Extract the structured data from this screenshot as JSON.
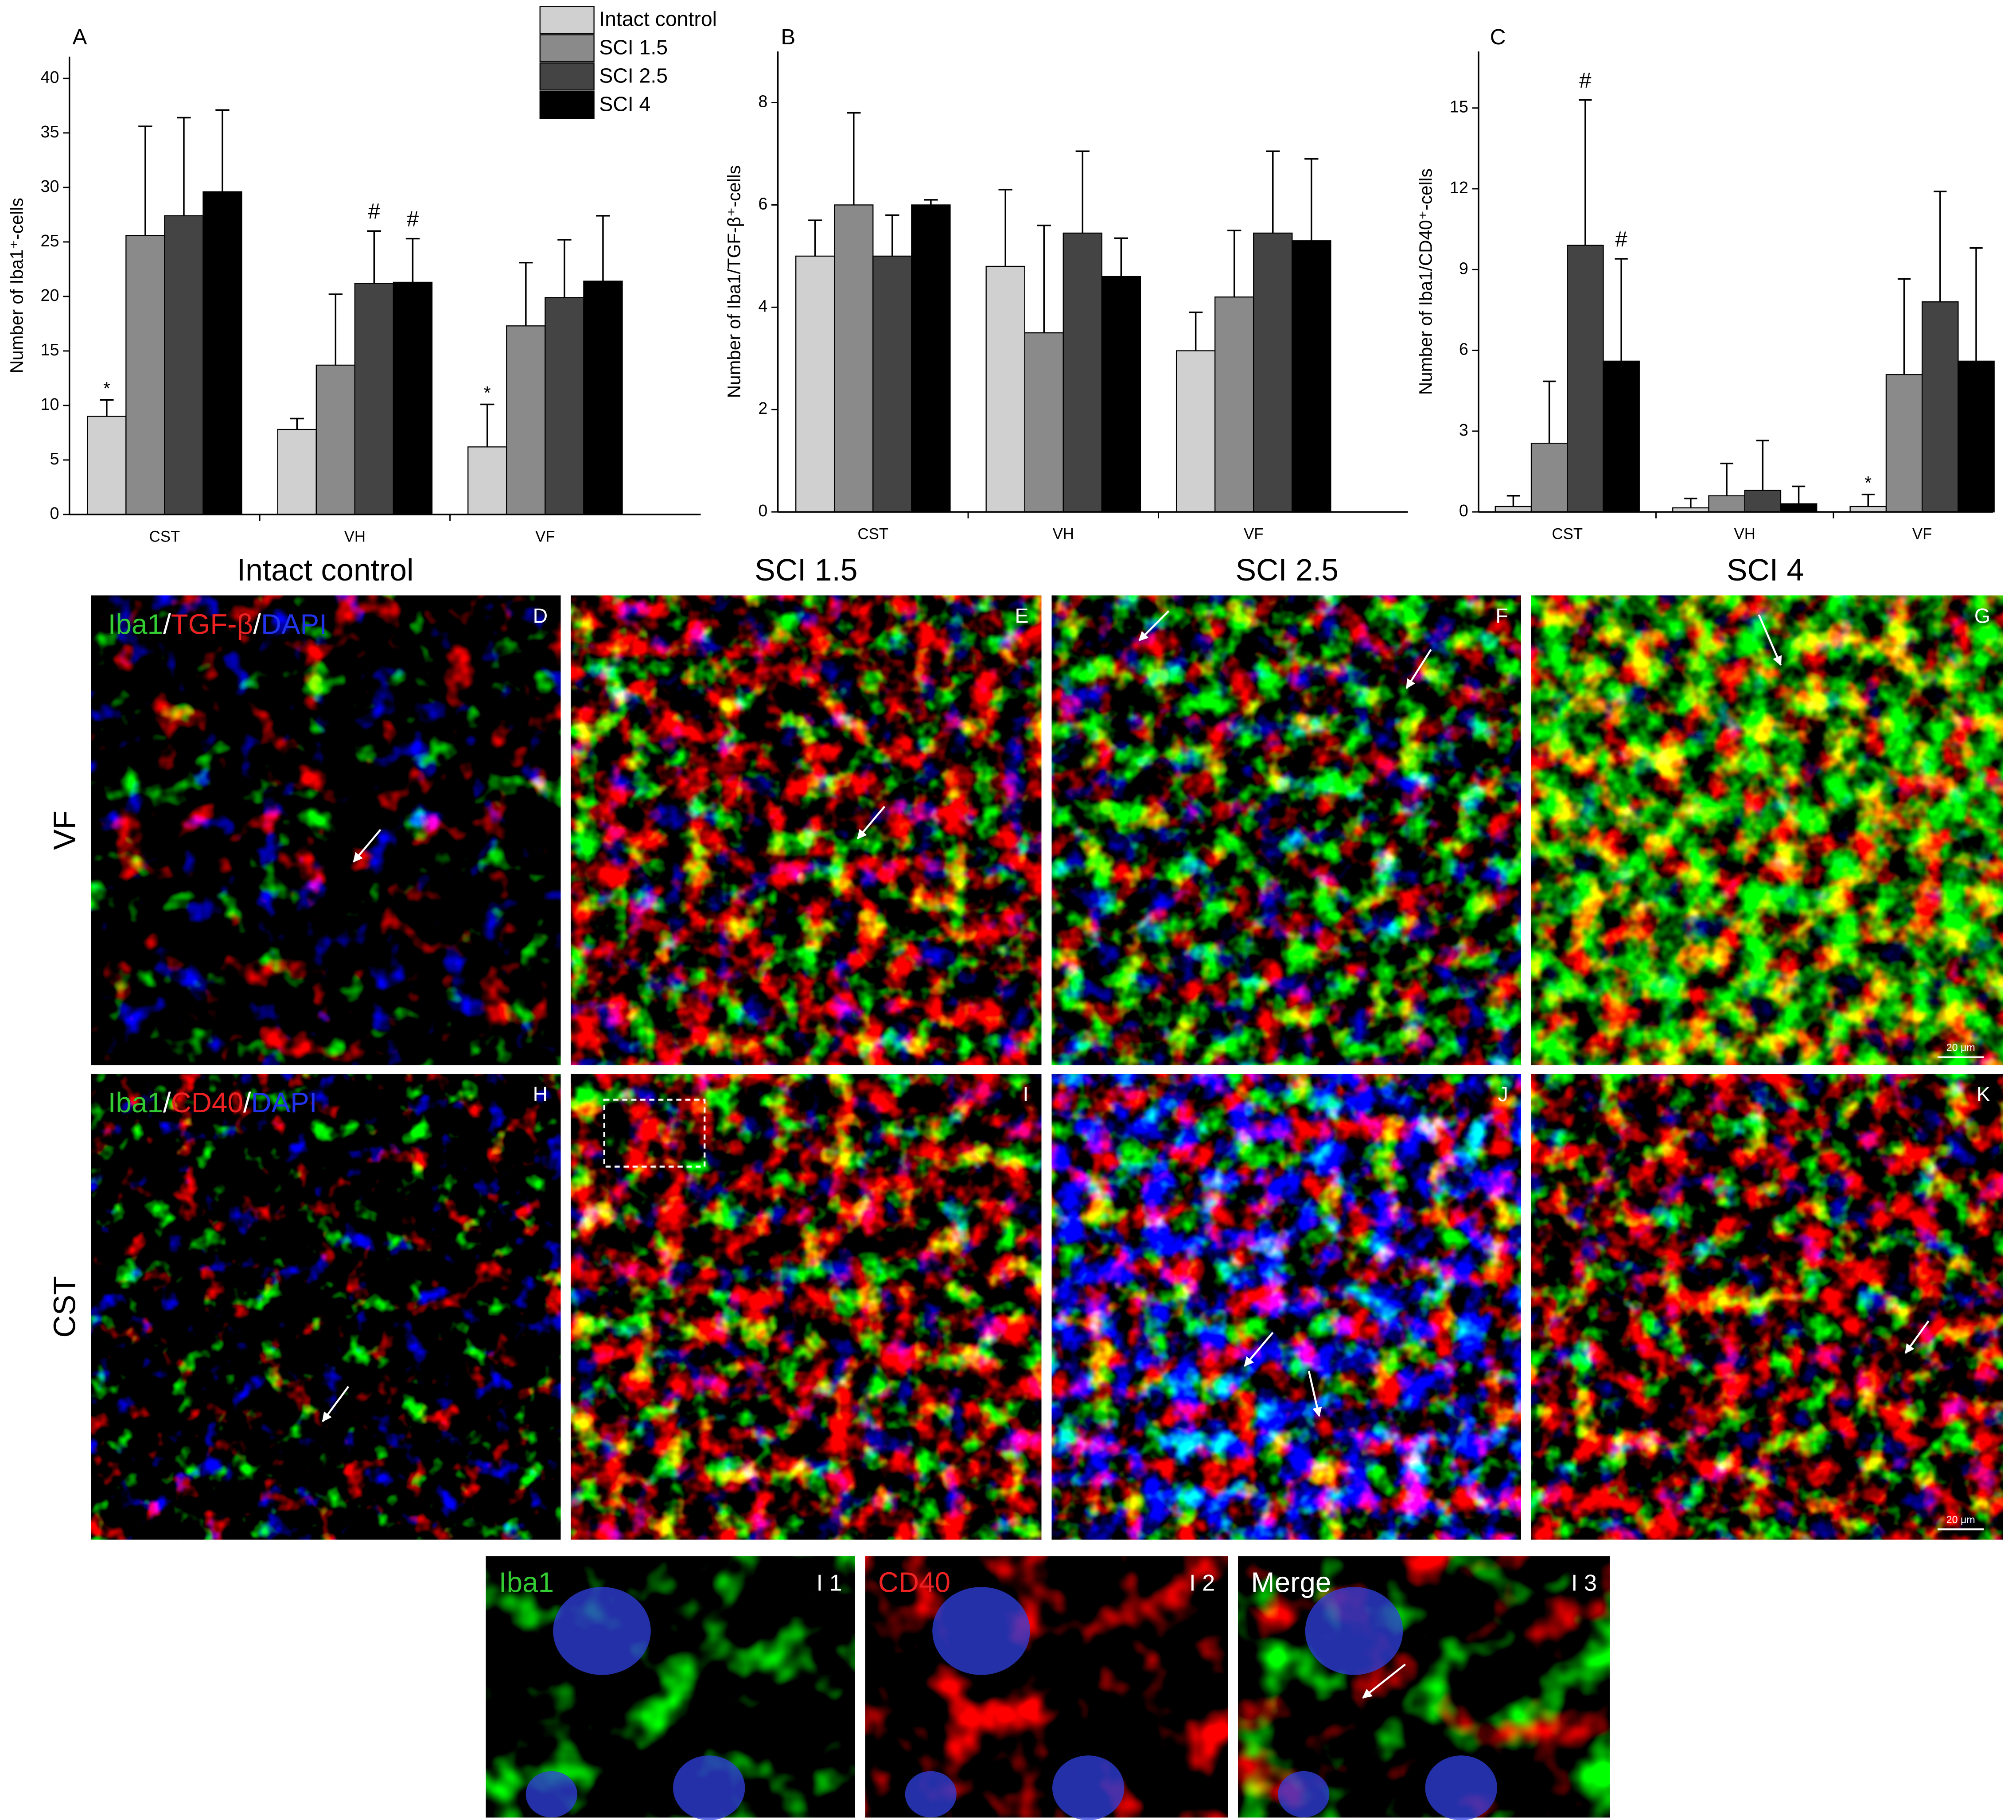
{
  "chart_data": [
    {
      "type": "bar",
      "label": "A",
      "y_label": "Number of Iba1⁺-cells",
      "categories": [
        "CST",
        "VH",
        "VF"
      ],
      "series": [
        {
          "name": "Intact control",
          "color": "#d0d0d0",
          "values": [
            9,
            7.8,
            6.2
          ],
          "errors": [
            1.5,
            1,
            3.9
          ]
        },
        {
          "name": "SCI 1.5",
          "color": "#8a8a8a",
          "values": [
            25.6,
            13.7,
            17.3
          ],
          "errors": [
            10,
            6.5,
            5.8
          ]
        },
        {
          "name": "SCI 2.5",
          "color": "#444444",
          "values": [
            27.4,
            21.2,
            19.9
          ],
          "errors": [
            9,
            4.8,
            5.3
          ]
        },
        {
          "name": "SCI 4",
          "color": "#000000",
          "values": [
            29.6,
            21.3,
            21.4
          ],
          "errors": [
            7.5,
            4,
            6
          ]
        }
      ],
      "ylim": [
        0,
        42
      ],
      "yticks": [
        0,
        5,
        10,
        15,
        20,
        25,
        30,
        35,
        40
      ],
      "legend": "top-right",
      "annotations": [
        {
          "text": "*",
          "category": "CST",
          "series": "Intact control"
        },
        {
          "text": "#",
          "category": "VH",
          "series": "SCI 2.5"
        },
        {
          "text": "#",
          "category": "VH",
          "series": "SCI 4"
        },
        {
          "text": "*",
          "category": "VF",
          "series": "Intact control"
        }
      ]
    },
    {
      "type": "bar",
      "label": "B",
      "y_label": "Number of Iba1/TGF-β⁺-cells",
      "categories": [
        "CST",
        "VH",
        "VF"
      ],
      "series": [
        {
          "color": "#d0d0d0",
          "values": [
            5.0,
            4.8,
            3.15
          ],
          "errors": [
            0.7,
            1.5,
            0.75
          ]
        },
        {
          "color": "#8a8a8a",
          "values": [
            6.0,
            3.5,
            4.2
          ],
          "errors": [
            1.8,
            2.1,
            1.3
          ]
        },
        {
          "color": "#444444",
          "values": [
            5.0,
            5.45,
            5.45
          ],
          "errors": [
            0.8,
            1.6,
            1.6
          ]
        },
        {
          "color": "#000000",
          "values": [
            6.0,
            4.6,
            5.3
          ],
          "errors": [
            0.1,
            0.75,
            1.6
          ]
        }
      ],
      "ylim": [
        0,
        9
      ],
      "yticks": [
        0,
        2,
        4,
        6,
        8
      ],
      "legend": false
    },
    {
      "type": "bar",
      "label": "C",
      "y_label": "Number of Iba1/CD40⁺-cells",
      "categories": [
        "CST",
        "VH",
        "VF"
      ],
      "series": [
        {
          "name": "Intact control",
          "color": "#d0d0d0",
          "values": [
            0.2,
            0.15,
            0.2
          ],
          "errors": [
            0.4,
            0.35,
            0.45
          ]
        },
        {
          "name": "SCI 1.5",
          "color": "#8a8a8a",
          "values": [
            2.55,
            0.6,
            5.1
          ],
          "errors": [
            2.3,
            1.2,
            3.55
          ]
        },
        {
          "name": "SCI 2.5",
          "color": "#444444",
          "values": [
            9.9,
            0.8,
            7.8
          ],
          "errors": [
            5.4,
            1.85,
            4.1
          ]
        },
        {
          "name": "SCI 4",
          "color": "#000000",
          "values": [
            5.6,
            0.3,
            5.6
          ],
          "errors": [
            3.8,
            0.65,
            4.2
          ]
        }
      ],
      "ylim": [
        0,
        17.1
      ],
      "yticks": [
        0,
        3,
        6,
        9,
        12,
        15
      ],
      "legend": false,
      "annotations": [
        {
          "text": "#",
          "category": "CST",
          "series": "SCI 2.5"
        },
        {
          "text": "#",
          "category": "CST",
          "series": "SCI 4"
        },
        {
          "text": "*",
          "category": "VF",
          "series": "Intact control"
        }
      ]
    }
  ],
  "columns": [
    "Intact control",
    "SCI 1.5",
    "SCI 2.5",
    "SCI 4"
  ],
  "rows": [
    "VF",
    "CST"
  ],
  "panel_letters": [
    [
      "D",
      "E",
      "F",
      "G"
    ],
    [
      "H",
      "I",
      "J",
      "K"
    ]
  ],
  "stain_labels": [
    [
      {
        "text": "Iba1",
        "color": "#33cc33"
      },
      {
        "text": "/",
        "color": "#ffffff"
      },
      {
        "text": "TGF-β",
        "color": "#ee2222"
      },
      {
        "text": "/",
        "color": "#ffffff"
      },
      {
        "text": "DAPI",
        "color": "#2233ee"
      }
    ],
    [
      {
        "text": "Iba1",
        "color": "#33cc33"
      },
      {
        "text": "/",
        "color": "#ffffff"
      },
      {
        "text": "CD40",
        "color": "#ee2222"
      },
      {
        "text": "/",
        "color": "#ffffff"
      },
      {
        "text": "DAPI",
        "color": "#2233ee"
      }
    ]
  ],
  "scale_bar": "20 μm",
  "insets": {
    "labels": [
      {
        "text": "Iba1",
        "color": "#33cc33"
      },
      {
        "text": "CD40",
        "color": "#ee2222"
      },
      {
        "text": "Merge",
        "color": "#ffffff"
      }
    ],
    "letters": [
      "I 1",
      "I 2",
      "I 3"
    ]
  }
}
